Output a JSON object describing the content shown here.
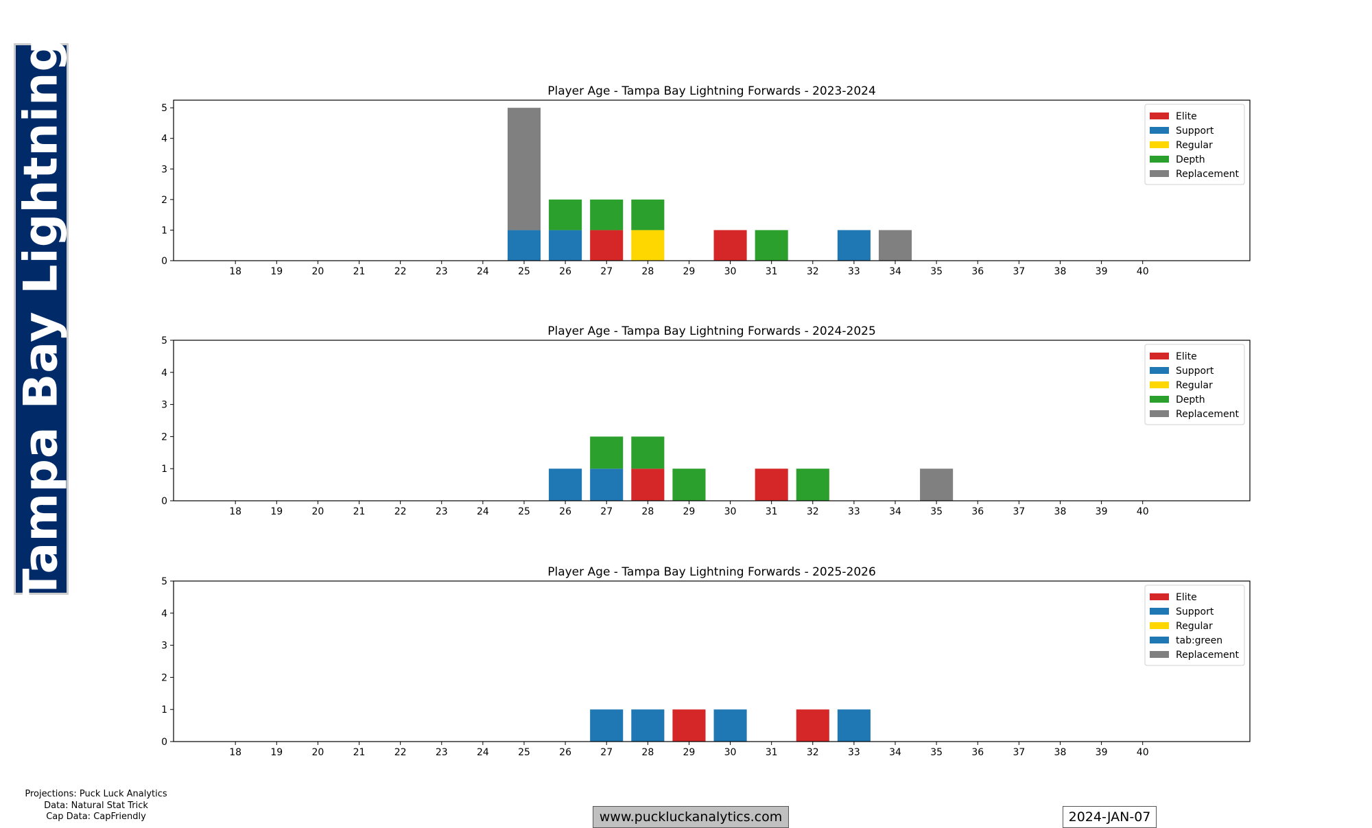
{
  "side_banner": {
    "text": "Tampa Bay Lightning",
    "bg_color": "#012a68",
    "text_color": "#ffffff"
  },
  "legend_colors": [
    "#d62728",
    "#1f77b4",
    "#ffd700",
    "#2ca02c",
    "#808080"
  ],
  "chart_data": [
    {
      "type": "bar",
      "stacked": true,
      "title": "Player Age - Tampa Bay Lightning Forwards - 2023-2024",
      "xlabel": "",
      "ylabel": "",
      "categories": [
        18,
        19,
        20,
        21,
        22,
        23,
        24,
        25,
        26,
        27,
        28,
        29,
        30,
        31,
        32,
        33,
        34,
        35,
        36,
        37,
        38,
        39,
        40
      ],
      "ylim": [
        0,
        5.25
      ],
      "yticks": [
        0,
        1,
        2,
        3,
        4,
        5
      ],
      "legend_position": "upper right",
      "legend": [
        "Elite",
        "Support",
        "Regular",
        "Depth",
        "Replacement"
      ],
      "series": [
        {
          "name": "Elite",
          "color": "#d62728",
          "values": [
            0,
            0,
            0,
            0,
            0,
            0,
            0,
            0,
            0,
            1,
            0,
            0,
            1,
            0,
            0,
            0,
            0,
            0,
            0,
            0,
            0,
            0,
            0
          ]
        },
        {
          "name": "Support",
          "color": "#1f77b4",
          "values": [
            0,
            0,
            0,
            0,
            0,
            0,
            0,
            1,
            1,
            0,
            0,
            0,
            0,
            0,
            0,
            1,
            0,
            0,
            0,
            0,
            0,
            0,
            0
          ]
        },
        {
          "name": "Regular",
          "color": "#ffd700",
          "values": [
            0,
            0,
            0,
            0,
            0,
            0,
            0,
            0,
            0,
            0,
            1,
            0,
            0,
            0,
            0,
            0,
            0,
            0,
            0,
            0,
            0,
            0,
            0
          ]
        },
        {
          "name": "Depth",
          "color": "#2ca02c",
          "values": [
            0,
            0,
            0,
            0,
            0,
            0,
            0,
            0,
            1,
            1,
            1,
            0,
            0,
            1,
            0,
            0,
            0,
            0,
            0,
            0,
            0,
            0,
            0
          ]
        },
        {
          "name": "Replacement",
          "color": "#808080",
          "values": [
            0,
            0,
            0,
            0,
            0,
            0,
            0,
            4,
            0,
            0,
            0,
            0,
            0,
            0,
            0,
            0,
            1,
            0,
            0,
            0,
            0,
            0,
            0
          ]
        }
      ]
    },
    {
      "type": "bar",
      "stacked": true,
      "title": "Player Age - Tampa Bay Lightning Forwards - 2024-2025",
      "xlabel": "",
      "ylabel": "",
      "categories": [
        18,
        19,
        20,
        21,
        22,
        23,
        24,
        25,
        26,
        27,
        28,
        29,
        30,
        31,
        32,
        33,
        34,
        35,
        36,
        37,
        38,
        39,
        40
      ],
      "ylim": [
        0,
        5
      ],
      "yticks": [
        0,
        1,
        2,
        3,
        4,
        5
      ],
      "legend_position": "upper right",
      "legend": [
        "Elite",
        "Support",
        "Regular",
        "Depth",
        "Replacement"
      ],
      "series": [
        {
          "name": "Elite",
          "color": "#d62728",
          "values": [
            0,
            0,
            0,
            0,
            0,
            0,
            0,
            0,
            0,
            0,
            1,
            0,
            0,
            1,
            0,
            0,
            0,
            0,
            0,
            0,
            0,
            0,
            0
          ]
        },
        {
          "name": "Support",
          "color": "#1f77b4",
          "values": [
            0,
            0,
            0,
            0,
            0,
            0,
            0,
            0,
            1,
            1,
            0,
            0,
            0,
            0,
            0,
            0,
            0,
            0,
            0,
            0,
            0,
            0,
            0
          ]
        },
        {
          "name": "Regular",
          "color": "#ffd700",
          "values": [
            0,
            0,
            0,
            0,
            0,
            0,
            0,
            0,
            0,
            0,
            0,
            0,
            0,
            0,
            0,
            0,
            0,
            0,
            0,
            0,
            0,
            0,
            0
          ]
        },
        {
          "name": "Depth",
          "color": "#2ca02c",
          "values": [
            0,
            0,
            0,
            0,
            0,
            0,
            0,
            0,
            0,
            1,
            1,
            1,
            0,
            0,
            1,
            0,
            0,
            0,
            0,
            0,
            0,
            0,
            0
          ]
        },
        {
          "name": "Replacement",
          "color": "#808080",
          "values": [
            0,
            0,
            0,
            0,
            0,
            0,
            0,
            0,
            0,
            0,
            0,
            0,
            0,
            0,
            0,
            0,
            0,
            1,
            0,
            0,
            0,
            0,
            0
          ]
        }
      ]
    },
    {
      "type": "bar",
      "stacked": true,
      "title": "Player Age - Tampa Bay Lightning Forwards - 2025-2026",
      "xlabel": "",
      "ylabel": "",
      "categories": [
        18,
        19,
        20,
        21,
        22,
        23,
        24,
        25,
        26,
        27,
        28,
        29,
        30,
        31,
        32,
        33,
        34,
        35,
        36,
        37,
        38,
        39,
        40
      ],
      "ylim": [
        0,
        5
      ],
      "yticks": [
        0,
        1,
        2,
        3,
        4,
        5
      ],
      "legend_position": "upper right",
      "legend": [
        "Elite",
        "Support",
        "Regular",
        "tab:green",
        "Replacement"
      ],
      "series": [
        {
          "name": "Elite",
          "color": "#d62728",
          "values": [
            0,
            0,
            0,
            0,
            0,
            0,
            0,
            0,
            0,
            0,
            0,
            1,
            0,
            0,
            1,
            0,
            0,
            0,
            0,
            0,
            0,
            0,
            0
          ]
        },
        {
          "name": "Support",
          "color": "#1f77b4",
          "values": [
            0,
            0,
            0,
            0,
            0,
            0,
            0,
            0,
            0,
            1,
            1,
            0,
            1,
            0,
            0,
            1,
            0,
            0,
            0,
            0,
            0,
            0,
            0
          ]
        },
        {
          "name": "Regular",
          "color": "#ffd700",
          "values": [
            0,
            0,
            0,
            0,
            0,
            0,
            0,
            0,
            0,
            0,
            0,
            0,
            0,
            0,
            0,
            0,
            0,
            0,
            0,
            0,
            0,
            0,
            0
          ]
        },
        {
          "name": "tab:green",
          "color": "#1f77b4",
          "values": [
            0,
            0,
            0,
            0,
            0,
            0,
            0,
            0,
            0,
            0,
            0,
            0,
            0,
            0,
            0,
            0,
            0,
            0,
            0,
            0,
            0,
            0,
            0
          ]
        },
        {
          "name": "Replacement",
          "color": "#808080",
          "values": [
            0,
            0,
            0,
            0,
            0,
            0,
            0,
            0,
            0,
            0,
            0,
            0,
            0,
            0,
            0,
            0,
            0,
            0,
            0,
            0,
            0,
            0,
            0
          ]
        }
      ]
    }
  ],
  "footer": {
    "credits": [
      "Projections: Puck Luck Analytics",
      "Data: Natural Stat Trick",
      "Cap Data: CapFriendly"
    ],
    "website": "www.puckluckanalytics.com",
    "date": "2024-JAN-07"
  }
}
